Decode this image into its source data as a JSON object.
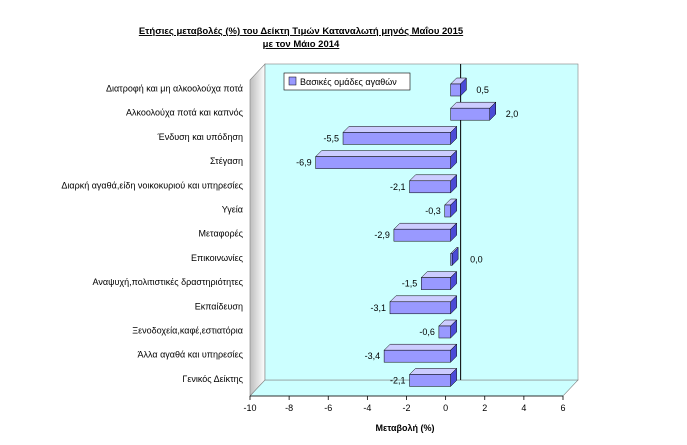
{
  "chart_data": {
    "type": "bar",
    "orientation": "horizontal",
    "title_lines": [
      "Ετήσιες μεταβολές (%) του  Δείκτη Τιμών Καταναλωτή μηνός Μαΐου 2015",
      "με τον Μάιο 2014"
    ],
    "categories": [
      "Διατροφή και μη αλκοολούχα ποτά",
      "Αλκοολούχα ποτά και καπνός",
      "Ένδυση και υπόδηση",
      "Στέγαση",
      "Διαρκή αγαθά,είδη νοικοκυριού και υπηρεσίες",
      "Υγεία",
      "Μεταφορές",
      "Επικοινωνίες",
      "Αναψυχή,πολιτιστικές δραστηριότητες",
      "Εκπαίδευση",
      "Ξενοδοχεία,καφέ,εστιατόρια",
      "Άλλα αγαθά και υπηρεσίες",
      "Γενικός Δείκτης"
    ],
    "series": [
      {
        "name": "Βασικές ομάδες αγαθών",
        "values": [
          0.5,
          2.0,
          -5.5,
          -6.9,
          -2.1,
          -0.3,
          -2.9,
          0.0,
          -1.5,
          -3.1,
          -0.6,
          -3.4,
          -2.1
        ]
      }
    ],
    "value_labels": [
      "0,5",
      "2,0",
      "-5,5",
      "-6,9",
      "-2,1",
      "-0,3",
      "-2,9",
      "0,0",
      "-1,5",
      "-3,1",
      "-0,6",
      "-3,4",
      "-2,1"
    ],
    "xlabel": "Μεταβολή (%)",
    "xlim": [
      -10,
      6
    ],
    "xticks": [
      -10,
      -8,
      -6,
      -4,
      -2,
      0,
      2,
      4,
      6
    ],
    "legend_position": "top-left",
    "grid": false,
    "colors": {
      "bar_front": "#9999ff",
      "bar_top": "#ccccff",
      "bar_side": "#4b4bd6",
      "plot_background": "#ccffff",
      "floor": "#ccffff",
      "left_wall": "#c0c0c0",
      "reference_line": "#000000"
    }
  }
}
